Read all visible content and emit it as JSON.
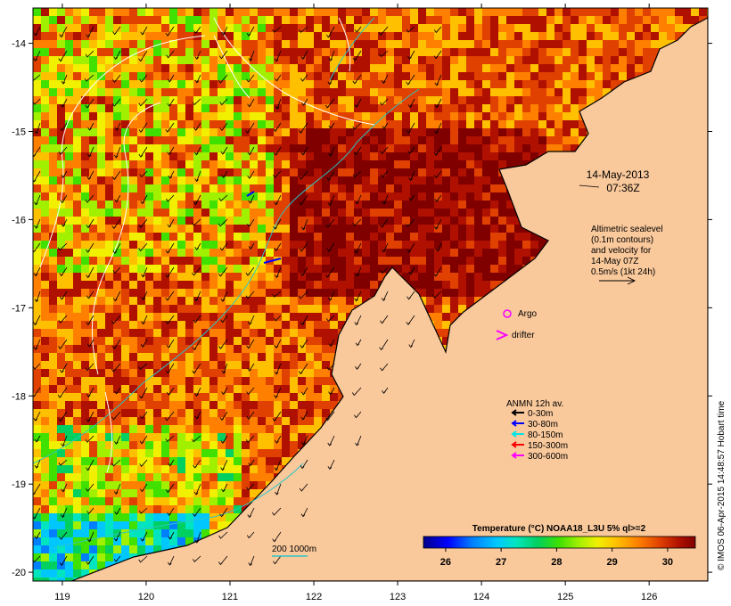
{
  "map": {
    "x_axis": {
      "labels": [
        "119",
        "120",
        "121",
        "122",
        "123",
        "124",
        "125",
        "126"
      ],
      "values": [
        119,
        120,
        121,
        122,
        123,
        124,
        125,
        126
      ]
    },
    "y_axis": {
      "labels": [
        "-14",
        "-15",
        "-16",
        "-17",
        "-18",
        "-19",
        "-20"
      ],
      "values": [
        -14,
        -15,
        -16,
        -17,
        -18,
        -19,
        -20
      ]
    },
    "extent": {
      "lon": [
        118.65,
        126.7
      ],
      "lat": [
        -20.1,
        -13.6
      ]
    }
  },
  "annotations": {
    "date": "14-May-2013",
    "time": "07:36Z",
    "altimetry": [
      "Altimetric sealevel",
      "(0.1m contours)",
      "and velocity for",
      "14-May 07Z",
      "0.5m/s (1kt 24h)"
    ],
    "argo_label": "Argo",
    "drifter_label": "drifter",
    "scale_label": "200  1000m"
  },
  "legend": {
    "title": "ANMN 12h av.",
    "items": [
      {
        "label": "0-30m",
        "color": "#000000"
      },
      {
        "label": "30-80m",
        "color": "#0000ff"
      },
      {
        "label": "80-150m",
        "color": "#00e5e5"
      },
      {
        "label": "150-300m",
        "color": "#ff0000"
      },
      {
        "label": "300-600m",
        "color": "#ff00ff"
      }
    ]
  },
  "colorbar": {
    "title": "Temperature (°C) NOAA18_L3U 5% ql>=2",
    "ticks": [
      "26",
      "27",
      "28",
      "29",
      "30"
    ],
    "range": [
      25.6,
      30.5
    ],
    "colors": [
      "#00008b",
      "#0000ff",
      "#0080ff",
      "#00c8ff",
      "#00e5c0",
      "#00d060",
      "#40e000",
      "#a0f000",
      "#f0f000",
      "#ffc000",
      "#ff8000",
      "#e04000",
      "#b01000",
      "#800000"
    ]
  },
  "credit": "© IMOS 06-Apr-2015 14:48:57 Hobart time",
  "colors": {
    "land": "#f9c89b",
    "coast": "#000000",
    "contour": "#ffffff",
    "isobath": "#2bc6c6",
    "argo": "#ff00ff"
  }
}
